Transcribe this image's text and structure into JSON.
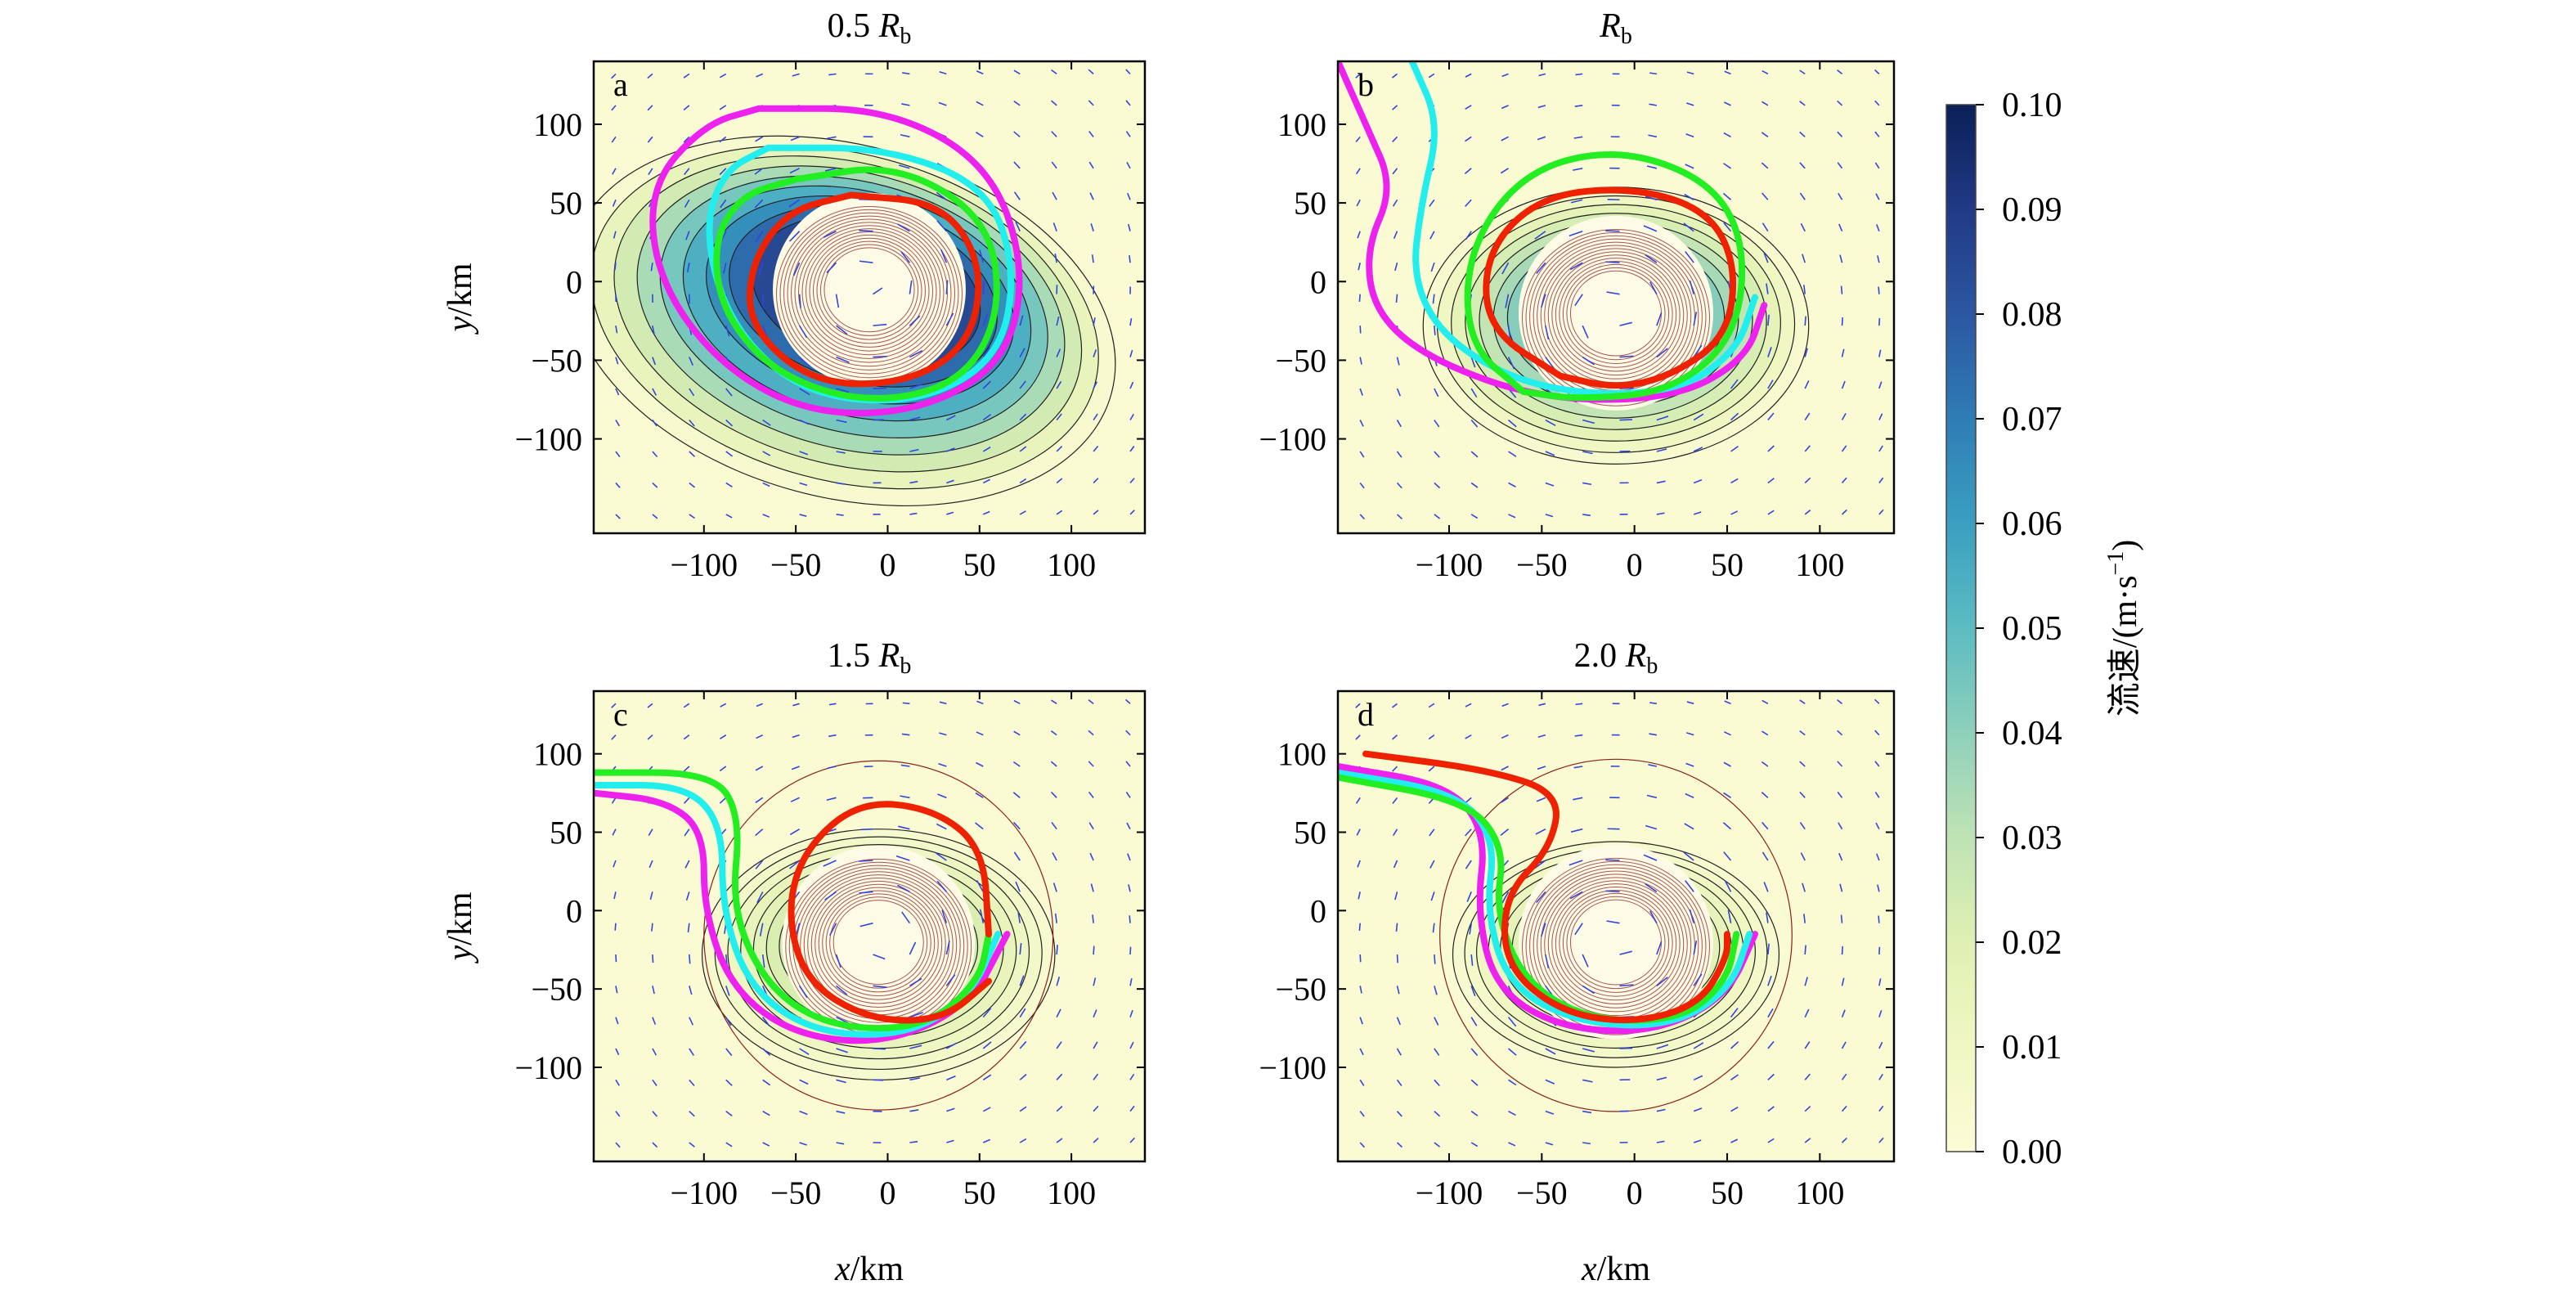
{
  "chart_data": [
    {
      "type": "contour",
      "panel_letter": "a",
      "title": "0.5 R_b",
      "title_prefix": "0.5 ",
      "title_R": "R",
      "title_sub": "b",
      "xlabel": "",
      "ylabel_italic": "y",
      "ylabel_unit": "/km",
      "xlim": [
        -160,
        140
      ],
      "ylim": [
        -160,
        140
      ],
      "xticks": [
        -100,
        -50,
        0,
        50,
        100
      ],
      "yticks": [
        100,
        50,
        0,
        -50,
        -100
      ],
      "max_speed": 0.095,
      "center": [
        -10,
        -5
      ],
      "spread": [
        95,
        70
      ],
      "tilt": -0.5,
      "curves": {
        "magenta": [
          [
            -70,
            110
          ],
          [
            0,
            110
          ],
          [
            55,
            75
          ],
          [
            75,
            10
          ],
          [
            65,
            -50
          ],
          [
            20,
            -82
          ],
          [
            -40,
            -85
          ],
          [
            -90,
            -55
          ],
          [
            -125,
            0
          ],
          [
            -130,
            60
          ],
          [
            -100,
            100
          ],
          [
            -70,
            110
          ]
        ],
        "cyan": [
          [
            -65,
            85
          ],
          [
            0,
            85
          ],
          [
            55,
            60
          ],
          [
            70,
            5
          ],
          [
            60,
            -50
          ],
          [
            15,
            -78
          ],
          [
            -45,
            -72
          ],
          [
            -85,
            -30
          ],
          [
            -100,
            30
          ],
          [
            -90,
            70
          ],
          [
            -65,
            85
          ]
        ],
        "green": [
          [
            -50,
            65
          ],
          [
            5,
            75
          ],
          [
            55,
            40
          ],
          [
            62,
            -20
          ],
          [
            40,
            -65
          ],
          [
            -10,
            -78
          ],
          [
            -60,
            -60
          ],
          [
            -90,
            -20
          ],
          [
            -95,
            25
          ],
          [
            -80,
            55
          ],
          [
            -50,
            65
          ]
        ],
        "red": [
          [
            -20,
            55
          ],
          [
            30,
            50
          ],
          [
            52,
            10
          ],
          [
            45,
            -40
          ],
          [
            10,
            -65
          ],
          [
            -40,
            -65
          ],
          [
            -75,
            -30
          ],
          [
            -75,
            10
          ],
          [
            -55,
            45
          ],
          [
            -20,
            55
          ]
        ]
      }
    },
    {
      "type": "contour",
      "panel_letter": "b",
      "title": "R_b",
      "title_prefix": "",
      "title_R": "R",
      "title_sub": "b",
      "xlabel": "",
      "ylabel_italic": "",
      "ylabel_unit": "",
      "xlim": [
        -160,
        140
      ],
      "ylim": [
        -160,
        140
      ],
      "xticks": [
        -100,
        -50,
        0,
        50,
        100
      ],
      "yticks": [
        100,
        50,
        0,
        -50,
        -100
      ],
      "max_speed": 0.06,
      "center": [
        -10,
        -20
      ],
      "spread": [
        65,
        55
      ],
      "tilt": 0,
      "curves": {
        "magenta": [
          [
            -160,
            140
          ],
          [
            -145,
            100
          ],
          [
            -130,
            60
          ],
          [
            -145,
            20
          ],
          [
            -140,
            -20
          ],
          [
            -110,
            -50
          ],
          [
            -50,
            -75
          ],
          [
            20,
            -75
          ],
          [
            60,
            -50
          ],
          [
            70,
            -15
          ]
        ],
        "cyan": [
          [
            -120,
            140
          ],
          [
            -105,
            100
          ],
          [
            -115,
            50
          ],
          [
            -120,
            0
          ],
          [
            -100,
            -40
          ],
          [
            -50,
            -70
          ],
          [
            20,
            -72
          ],
          [
            55,
            -45
          ],
          [
            65,
            -10
          ]
        ],
        "green": [
          [
            -60,
            -70
          ],
          [
            -90,
            -40
          ],
          [
            -90,
            20
          ],
          [
            -60,
            70
          ],
          [
            -10,
            85
          ],
          [
            40,
            65
          ],
          [
            60,
            25
          ],
          [
            55,
            -35
          ],
          [
            20,
            -70
          ],
          [
            -30,
            -75
          ],
          [
            -60,
            -70
          ]
        ],
        "red": [
          [
            -40,
            -60
          ],
          [
            -80,
            -30
          ],
          [
            -80,
            20
          ],
          [
            -50,
            55
          ],
          [
            0,
            60
          ],
          [
            40,
            45
          ],
          [
            55,
            10
          ],
          [
            50,
            -35
          ],
          [
            20,
            -60
          ],
          [
            -10,
            -68
          ],
          [
            -40,
            -60
          ]
        ]
      }
    },
    {
      "type": "contour",
      "panel_letter": "c",
      "title": "1.5 R_b",
      "title_prefix": "1.5 ",
      "title_R": "R",
      "title_sub": "b",
      "xlabel_italic": "",
      "xlabel_unit": "",
      "ylabel_italic": "y",
      "ylabel_unit": "/km",
      "xlim": [
        -160,
        140
      ],
      "ylim": [
        -160,
        140
      ],
      "xticks": [
        -100,
        -50,
        0,
        50,
        100
      ],
      "yticks": [
        100,
        50,
        0,
        -50,
        -100
      ],
      "max_speed": 0.035,
      "center": [
        -5,
        -20
      ],
      "spread": [
        60,
        50
      ],
      "tilt": 0,
      "curves": {
        "magenta": [
          [
            -160,
            75
          ],
          [
            -120,
            70
          ],
          [
            -100,
            50
          ],
          [
            -100,
            0
          ],
          [
            -85,
            -50
          ],
          [
            -50,
            -80
          ],
          [
            0,
            -85
          ],
          [
            45,
            -60
          ],
          [
            65,
            -15
          ]
        ],
        "cyan": [
          [
            -160,
            80
          ],
          [
            -110,
            80
          ],
          [
            -90,
            55
          ],
          [
            -90,
            0
          ],
          [
            -75,
            -50
          ],
          [
            -40,
            -78
          ],
          [
            10,
            -80
          ],
          [
            45,
            -55
          ],
          [
            60,
            -15
          ]
        ],
        "green": [
          [
            -160,
            88
          ],
          [
            -95,
            88
          ],
          [
            -80,
            60
          ],
          [
            -85,
            0
          ],
          [
            -65,
            -50
          ],
          [
            -30,
            -75
          ],
          [
            20,
            -75
          ],
          [
            50,
            -45
          ],
          [
            55,
            -15
          ]
        ],
        "red": [
          [
            55,
            -15
          ],
          [
            52,
            40
          ],
          [
            25,
            65
          ],
          [
            -15,
            70
          ],
          [
            -45,
            40
          ],
          [
            -55,
            0
          ],
          [
            -45,
            -45
          ],
          [
            -10,
            -70
          ],
          [
            30,
            -70
          ],
          [
            55,
            -45
          ]
        ]
      }
    },
    {
      "type": "contour",
      "panel_letter": "d",
      "title": "2.0 R_b",
      "title_prefix": "2.0 ",
      "title_R": "R",
      "title_sub": "b",
      "xlabel_italic": "x",
      "xlabel_unit": "/km",
      "ylabel_italic": "",
      "ylabel_unit": "",
      "xlim": [
        -160,
        140
      ],
      "ylim": [
        -160,
        140
      ],
      "xticks": [
        -100,
        -50,
        0,
        50,
        100
      ],
      "yticks": [
        100,
        50,
        0,
        -50,
        -100
      ],
      "max_speed": 0.03,
      "center": [
        -10,
        -20
      ],
      "spread": [
        55,
        45
      ],
      "tilt": 0,
      "curves": {
        "magenta": [
          [
            -160,
            92
          ],
          [
            -100,
            80
          ],
          [
            -80,
            50
          ],
          [
            -85,
            0
          ],
          [
            -75,
            -50
          ],
          [
            -40,
            -75
          ],
          [
            10,
            -78
          ],
          [
            50,
            -55
          ],
          [
            65,
            -15
          ]
        ],
        "cyan": [
          [
            -160,
            88
          ],
          [
            -95,
            75
          ],
          [
            -75,
            45
          ],
          [
            -80,
            0
          ],
          [
            -68,
            -48
          ],
          [
            -30,
            -72
          ],
          [
            20,
            -74
          ],
          [
            52,
            -50
          ],
          [
            62,
            -15
          ]
        ],
        "green": [
          [
            -160,
            85
          ],
          [
            -90,
            70
          ],
          [
            -70,
            40
          ],
          [
            -75,
            0
          ],
          [
            -60,
            -45
          ],
          [
            -25,
            -70
          ],
          [
            25,
            -70
          ],
          [
            50,
            -45
          ],
          [
            55,
            -15
          ]
        ],
        "red": [
          [
            -145,
            100
          ],
          [
            -80,
            90
          ],
          [
            -40,
            75
          ],
          [
            -45,
            40
          ],
          [
            -70,
            10
          ],
          [
            -70,
            -35
          ],
          [
            -40,
            -65
          ],
          [
            0,
            -72
          ],
          [
            35,
            -60
          ],
          [
            50,
            -30
          ],
          [
            50,
            -15
          ]
        ]
      }
    },
    {
      "type": "colorbar",
      "label": "流速/(m·s",
      "label_sup": "−1",
      "label_close": ")",
      "min": 0.0,
      "max": 0.1,
      "ticks": [
        "0.10",
        "0.09",
        "0.08",
        "0.07",
        "0.06",
        "0.05",
        "0.04",
        "0.03",
        "0.02",
        "0.01",
        "0.00"
      ]
    }
  ],
  "colors": {
    "magenta": "#ee22ee",
    "cyan": "#22eeee",
    "green": "#22ee22",
    "red": "#ee2200",
    "vector": "#3344dd",
    "contour": "#222222",
    "ring": "#8a1f1f",
    "core": "#fdfbe6"
  }
}
